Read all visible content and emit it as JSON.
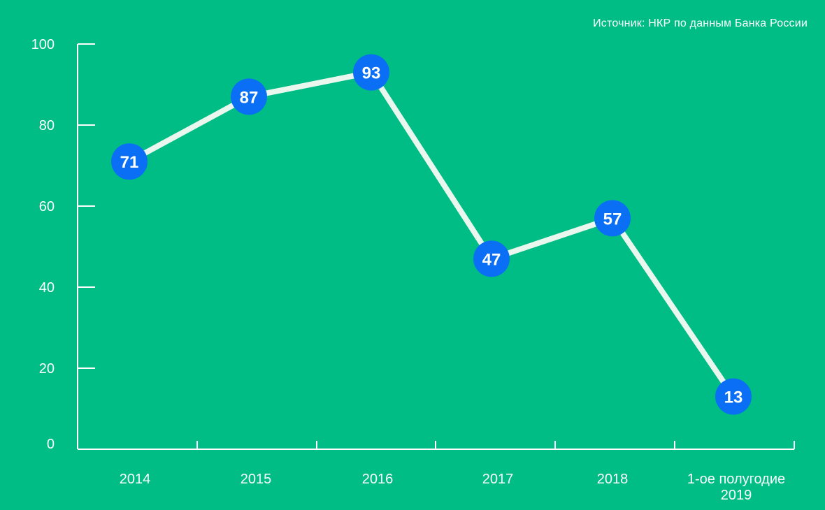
{
  "source": "Источник: НКР по данным Банка России",
  "colors": {
    "background": "#00BD86",
    "axis": "#ffffff",
    "line": "#EAF7EE",
    "marker": "#0B6FF5",
    "text": "#ffffff"
  },
  "chart_data": {
    "type": "line",
    "categories": [
      "2014",
      "2015",
      "2016",
      "2017",
      "2018",
      "1-ое полугодие 2019"
    ],
    "category_lines": [
      [
        "2014"
      ],
      [
        "2015"
      ],
      [
        "2016"
      ],
      [
        "2017"
      ],
      [
        "2018"
      ],
      [
        "1-ое полугодие",
        "2019"
      ]
    ],
    "series": [
      {
        "values": [
          71,
          87,
          93,
          47,
          57,
          13
        ]
      }
    ],
    "yticks": [
      0,
      20,
      40,
      60,
      80,
      100
    ],
    "ylim": [
      0,
      100
    ],
    "grid": false,
    "data_labels": true
  }
}
